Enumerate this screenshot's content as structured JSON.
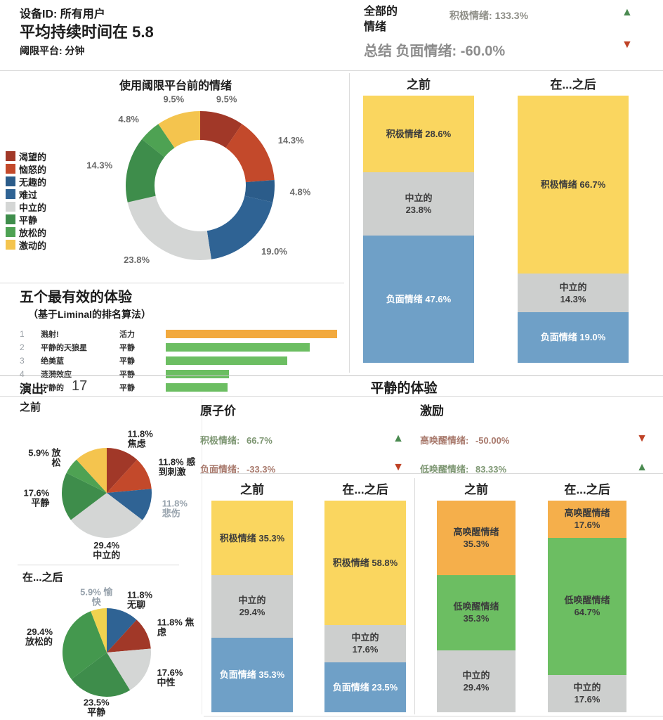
{
  "header": {
    "device_label": "设备ID: 所有用户",
    "duration_title": "平均持续时间在 5.8",
    "duration_sub": "阈限平台: 分钟",
    "overall": {
      "label_line1": "全部的",
      "label_line2": "情绪",
      "label_line3": "总结",
      "positive": {
        "label": "积极情绪:",
        "value": "133.3%",
        "arrow": "▲",
        "arrow_color": "#4a8a50"
      },
      "negative": {
        "label": "负面情绪:",
        "value": "-60.0%",
        "arrow": "▼",
        "arrow_color": "#bf4226"
      }
    }
  },
  "session": {
    "label": "演出:",
    "value": "17",
    "title": "平静的体验"
  },
  "pies_column": {
    "before_label": "之前",
    "after_label": "在...之后"
  },
  "sections": {
    "valence": {
      "title": "原子价",
      "kpis": [
        {
          "label": "积极情绪:",
          "value": "66.7%",
          "arrow": "▲",
          "arrow_color": "#4a8a50",
          "text_color": "#7d9672"
        },
        {
          "label": "负面情绪:",
          "value": "-33.3%",
          "arrow": "▼",
          "arrow_color": "#bf4226",
          "text_color": "#a8796c"
        }
      ]
    },
    "arousal": {
      "title": "激励",
      "kpis": [
        {
          "label": "高唤醒情绪:",
          "value": "-50.00%",
          "arrow": "▼",
          "arrow_color": "#bf4226",
          "text_color": "#a8796c"
        },
        {
          "label": "低唤醒情绪:",
          "value": "83.33%",
          "arrow": "▲",
          "arrow_color": "#4a8a50",
          "text_color": "#7d9672"
        }
      ]
    }
  },
  "chart_data": [
    {
      "id": "pre_emotions_donut",
      "type": "donut",
      "title": "使用阈限平台前的情绪",
      "label_color": "#6b6b6b",
      "legend_position": "left",
      "slices": [
        {
          "name": "渴望的",
          "label": "9.5%",
          "value": 9.5,
          "color": "#A13828"
        },
        {
          "name": "恼怒的",
          "label": "14.3%",
          "value": 14.3,
          "color": "#C3492B"
        },
        {
          "name": "无趣的",
          "label": "4.8%",
          "value": 4.8,
          "color": "#2B5C8A"
        },
        {
          "name": "难过",
          "label": "19.0%",
          "value": 19.0,
          "color": "#2F6394"
        },
        {
          "name": "中立的",
          "label": "23.8%",
          "value": 23.8,
          "color": "#D4D6D5"
        },
        {
          "name": "平静",
          "label": "14.3%",
          "value": 14.3,
          "color": "#3E8D4B"
        },
        {
          "name": "放松的",
          "label": "4.8%",
          "value": 4.8,
          "color": "#4EA253"
        },
        {
          "name": "激动的",
          "label": "9.5%",
          "value": 9.5,
          "color": "#F4C44E"
        }
      ]
    },
    {
      "id": "top_experiences",
      "type": "bar",
      "orientation": "horizontal",
      "title": "五个最有效的体验",
      "subtitle": "（基于Liminal的排名算法）",
      "rows": [
        {
          "rank": "1",
          "name": "溅射!",
          "category": "活力",
          "relative": 1.0,
          "color": "#F2A93D"
        },
        {
          "rank": "2",
          "name": "平静的天狼星",
          "category": "平静",
          "relative": 0.84,
          "color": "#6CBE62"
        },
        {
          "rank": "3",
          "name": "绝美蓝",
          "category": "平静",
          "relative": 0.71,
          "color": "#6CBE62"
        },
        {
          "rank": "4",
          "name": "涟漪效应",
          "category": "平静",
          "relative": 0.37,
          "color": "#6CBE62"
        },
        {
          "rank": "5",
          "name": "宁静的",
          "category": "平静",
          "relative": 0.36,
          "color": "#6CBE62"
        }
      ]
    },
    {
      "id": "overall_before_after",
      "type": "stacked_bar",
      "columns": [
        {
          "label": "之前",
          "segments": [
            {
              "label": "积极情绪 28.6%",
              "value": 28.6,
              "color": "#FAD65F",
              "text_color": "#3c3c3c"
            },
            {
              "label": "中立的\n23.8%",
              "value": 23.8,
              "color": "#CDCFCE",
              "text_color": "#3c3c3c"
            },
            {
              "label": "负面情绪 47.6%",
              "value": 47.6,
              "color": "#6FA0C7",
              "text_color": "#ffffff"
            }
          ]
        },
        {
          "label": "在...之后",
          "segments": [
            {
              "label": "积极情绪 66.7%",
              "value": 66.7,
              "color": "#FAD65F",
              "text_color": "#3c3c3c"
            },
            {
              "label": "中立的\n14.3%",
              "value": 14.3,
              "color": "#CDCFCE",
              "text_color": "#3c3c3c"
            },
            {
              "label": "负面情绪 19.0%",
              "value": 19.0,
              "color": "#6FA0C7",
              "text_color": "#ffffff"
            }
          ]
        }
      ]
    },
    {
      "id": "calm_before_pie",
      "type": "pie",
      "label": "之前",
      "slices": [
        {
          "label": "11.8%\n焦虑",
          "value": 11.8,
          "color": "#A13828"
        },
        {
          "label": "11.8% 感\n到刺激",
          "value": 11.8,
          "color": "#C3492B"
        },
        {
          "label": "11.8%\n悲伤",
          "value": 11.8,
          "color": "#2F6394",
          "muted": true
        },
        {
          "label": "29.4%\n中立的",
          "value": 29.4,
          "color": "#D4D6D5"
        },
        {
          "label": "17.6%\n平静",
          "value": 17.6,
          "color": "#3E8D4B"
        },
        {
          "label": "5.9% 放\n松",
          "value": 5.9,
          "color": "#4EA253"
        },
        {
          "label": "",
          "value": 11.8,
          "color": "#F4C44E"
        }
      ]
    },
    {
      "id": "calm_after_pie",
      "type": "pie",
      "label": "在...之后",
      "slices": [
        {
          "label": "11.8%\n无聊",
          "value": 11.8,
          "color": "#2F6394"
        },
        {
          "label": "11.8% 焦\n虑",
          "value": 11.8,
          "color": "#A13828"
        },
        {
          "label": "17.6%\n中性",
          "value": 17.6,
          "color": "#D4D6D5"
        },
        {
          "label": "23.5%\n平静",
          "value": 23.5,
          "color": "#3E8D4B"
        },
        {
          "label": "29.4%\n放松的",
          "value": 29.4,
          "color": "#44984E"
        },
        {
          "label": "5.9% 愉\n快",
          "value": 5.9,
          "color": "#F0D24F",
          "muted": true
        }
      ]
    },
    {
      "id": "valence_before_after",
      "type": "stacked_bar",
      "columns": [
        {
          "label": "之前",
          "segments": [
            {
              "label": "积极情绪 35.3%",
              "value": 35.3,
              "color": "#FAD65F",
              "text_color": "#3c3c3c"
            },
            {
              "label": "中立的\n29.4%",
              "value": 29.4,
              "color": "#CDCFCE",
              "text_color": "#3c3c3c"
            },
            {
              "label": "负面情绪 35.3%",
              "value": 35.3,
              "color": "#6FA0C7",
              "text_color": "#ffffff"
            }
          ]
        },
        {
          "label": "在...之后",
          "segments": [
            {
              "label": "积极情绪 58.8%",
              "value": 58.8,
              "color": "#FAD65F",
              "text_color": "#3c3c3c"
            },
            {
              "label": "中立的\n17.6%",
              "value": 17.6,
              "color": "#CDCFCE",
              "text_color": "#3c3c3c"
            },
            {
              "label": "负面情绪 23.5%",
              "value": 23.5,
              "color": "#6FA0C7",
              "text_color": "#ffffff"
            }
          ]
        }
      ]
    },
    {
      "id": "arousal_before_after",
      "type": "stacked_bar",
      "columns": [
        {
          "label": "之前",
          "segments": [
            {
              "label": "高唤醒情绪 35.3%",
              "value": 35.3,
              "color": "#F5AF4B",
              "text_color": "#3c3c3c"
            },
            {
              "label": "低唤醒情绪 35.3%",
              "value": 35.3,
              "color": "#6CBE62",
              "text_color": "#3c3c3c"
            },
            {
              "label": "中立的\n29.4%",
              "value": 29.4,
              "color": "#CDCFCE",
              "text_color": "#3c3c3c"
            }
          ]
        },
        {
          "label": "在...之后",
          "segments": [
            {
              "label": "高唤醒情绪 17.6%",
              "value": 17.6,
              "color": "#F5AF4B",
              "text_color": "#3c3c3c"
            },
            {
              "label": "低唤醒情绪 64.7%",
              "value": 64.7,
              "color": "#6CBE62",
              "text_color": "#3c3c3c"
            },
            {
              "label": "中立的\n17.6%",
              "value": 17.6,
              "color": "#CDCFCE",
              "text_color": "#3c3c3c"
            }
          ]
        }
      ]
    }
  ]
}
